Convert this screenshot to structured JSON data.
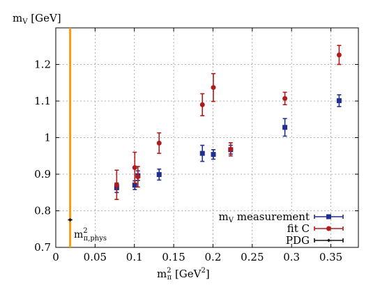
{
  "chart_data": {
    "type": "scatter",
    "xlabel": {
      "base": "m",
      "sub": "π",
      "sup": "2",
      "unit": " [GeV",
      "unit_sup": "2",
      "unit_end": "]"
    },
    "ylabel": {
      "base": "m",
      "sub": "V",
      "unit": " [GeV]"
    },
    "xlim": [
      0,
      0.385
    ],
    "ylim": [
      0.7,
      1.3
    ],
    "xticks": [
      0,
      0.05,
      0.1,
      0.15,
      0.2,
      0.25,
      0.3,
      0.35
    ],
    "xtick_labels": [
      "0",
      "0.05",
      "0.1",
      "0.15",
      "0.2",
      "0.25",
      "0.3",
      "0.35"
    ],
    "yticks": [
      0.7,
      0.8,
      0.9,
      1.0,
      1.1,
      1.2
    ],
    "ytick_labels": [
      "0.7",
      "0.8",
      "0.9",
      "1",
      "1.1",
      "1.2"
    ],
    "grid": true,
    "legend_position": "bottom-right",
    "vertical_line": {
      "x": 0.0183,
      "color": "#f39c12"
    },
    "annotation": {
      "base": "m",
      "sup": "2",
      "sub": "π,phys"
    },
    "series": [
      {
        "name": "measurement",
        "name_prefix": {
          "base": "m",
          "sub": "V"
        },
        "color": "#1f2f8f",
        "marker": "square",
        "points": [
          {
            "x": 0.0775,
            "y": 0.863,
            "err": 0.013
          },
          {
            "x": 0.1005,
            "y": 0.87,
            "err": 0.012
          },
          {
            "x": 0.1045,
            "y": 0.896,
            "err": 0.013
          },
          {
            "x": 0.1315,
            "y": 0.899,
            "err": 0.015
          },
          {
            "x": 0.1865,
            "y": 0.957,
            "err": 0.022
          },
          {
            "x": 0.2005,
            "y": 0.954,
            "err": 0.013
          },
          {
            "x": 0.2225,
            "y": 0.967,
            "err": 0.012
          },
          {
            "x": 0.2915,
            "y": 1.028,
            "err": 0.024
          },
          {
            "x": 0.3605,
            "y": 1.101,
            "err": 0.016
          }
        ]
      },
      {
        "name": "fit C",
        "color": "#b01c1c",
        "marker": "circle",
        "points": [
          {
            "x": 0.0775,
            "y": 0.871,
            "err": 0.04
          },
          {
            "x": 0.1005,
            "y": 0.918,
            "err": 0.042
          },
          {
            "x": 0.1045,
            "y": 0.893,
            "err": 0.028
          },
          {
            "x": 0.1315,
            "y": 0.985,
            "err": 0.028
          },
          {
            "x": 0.1865,
            "y": 1.09,
            "err": 0.03
          },
          {
            "x": 0.2005,
            "y": 1.137,
            "err": 0.038
          },
          {
            "x": 0.2225,
            "y": 0.968,
            "err": 0.018
          },
          {
            "x": 0.2915,
            "y": 1.107,
            "err": 0.017
          },
          {
            "x": 0.3605,
            "y": 1.226,
            "err": 0.026
          }
        ]
      },
      {
        "name": "PDG",
        "color": "#111111",
        "marker": "diamond",
        "points": [
          {
            "x": 0.0183,
            "y": 0.7753,
            "err": 0.0003
          }
        ]
      }
    ]
  }
}
